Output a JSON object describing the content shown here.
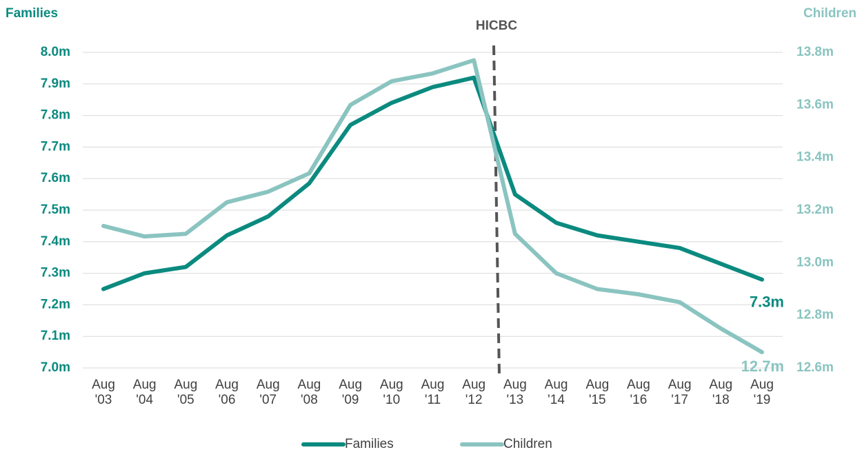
{
  "chart_data": {
    "type": "line",
    "y_title": "Families",
    "y2_title": "Children",
    "categories": [
      "Aug '03",
      "Aug '04",
      "Aug '05",
      "Aug '06",
      "Aug '07",
      "Aug '08",
      "Aug '09",
      "Aug '10",
      "Aug '11",
      "Aug '12",
      "Aug '13",
      "Aug '14",
      "Aug '15",
      "Aug '16",
      "Aug '17",
      "Aug '18",
      "Aug '19"
    ],
    "series": [
      {
        "name": "Families",
        "color": "#0b8a7f",
        "axis": "y",
        "values": [
          7.25,
          7.3,
          7.32,
          7.42,
          7.48,
          7.585,
          7.77,
          7.84,
          7.89,
          7.92,
          7.55,
          7.46,
          7.42,
          7.4,
          7.38,
          7.33,
          7.28
        ],
        "value_labels": [
          null,
          null,
          null,
          null,
          null,
          null,
          null,
          null,
          null,
          null,
          null,
          null,
          null,
          null,
          null,
          null,
          "7.3m"
        ]
      },
      {
        "name": "Children",
        "color": "#8ac4c0",
        "axis": "y2",
        "values": [
          13.14,
          13.1,
          13.11,
          13.23,
          13.27,
          13.34,
          13.6,
          13.69,
          13.72,
          13.77,
          13.11,
          12.96,
          12.9,
          12.88,
          12.85,
          12.75,
          12.66
        ],
        "value_labels": [
          null,
          null,
          null,
          null,
          null,
          null,
          null,
          null,
          null,
          null,
          null,
          null,
          null,
          null,
          null,
          null,
          "12.7m"
        ]
      }
    ],
    "ylim": [
      7.0,
      8.0
    ],
    "yticks": [
      {
        "value": 7.0,
        "label": "7.0m"
      },
      {
        "value": 7.1,
        "label": "7.1m"
      },
      {
        "value": 7.2,
        "label": "7.2m"
      },
      {
        "value": 7.3,
        "label": "7.3m"
      },
      {
        "value": 7.4,
        "label": "7.4m"
      },
      {
        "value": 7.5,
        "label": "7.5m"
      },
      {
        "value": 7.6,
        "label": "7.6m"
      },
      {
        "value": 7.7,
        "label": "7.7m"
      },
      {
        "value": 7.8,
        "label": "7.8m"
      },
      {
        "value": 7.9,
        "label": "7.9m"
      },
      {
        "value": 8.0,
        "label": "8.0m"
      }
    ],
    "y2lim": [
      12.6,
      13.8
    ],
    "y2ticks": [
      {
        "value": 12.6,
        "label": "12.6m"
      },
      {
        "value": 12.8,
        "label": "12.8m"
      },
      {
        "value": 13.0,
        "label": "13.0m"
      },
      {
        "value": 13.2,
        "label": "13.2m"
      },
      {
        "value": 13.4,
        "label": "13.4m"
      },
      {
        "value": 13.6,
        "label": "13.6m"
      },
      {
        "value": 13.8,
        "label": "13.8m"
      }
    ],
    "grid": true,
    "annotations": [
      {
        "text": "HICBC",
        "x": 9.55
      }
    ],
    "legend": "bottom"
  }
}
